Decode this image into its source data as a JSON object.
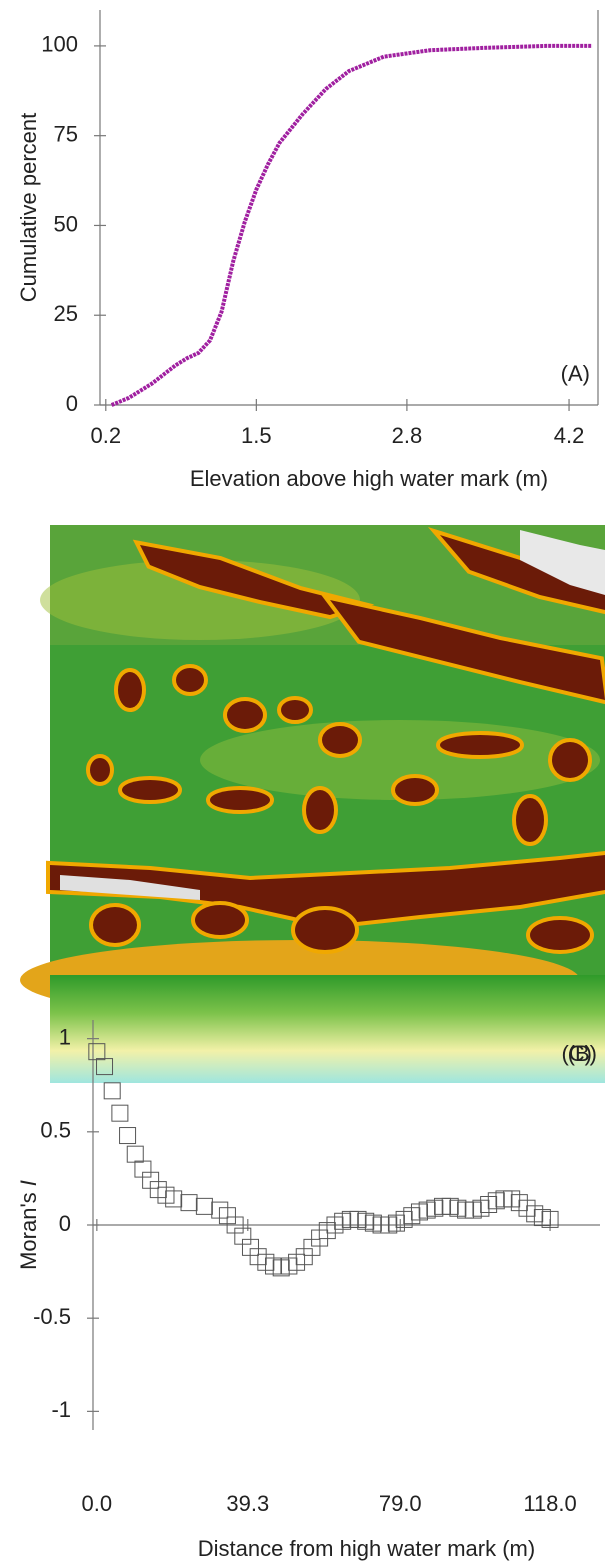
{
  "chart_data": [
    {
      "type": "line",
      "ylabel": "Cumulative percent",
      "xlabel": "Elevation above high water mark (m)",
      "panel_label": "(A)",
      "x": [
        0.25,
        0.4,
        0.6,
        0.8,
        0.9,
        1.0,
        1.1,
        1.2,
        1.3,
        1.4,
        1.5,
        1.6,
        1.7,
        1.9,
        2.1,
        2.3,
        2.6,
        3.0,
        3.5,
        4.0,
        4.4
      ],
      "values": [
        0,
        2,
        6,
        11,
        13,
        14.5,
        18,
        26,
        40,
        51,
        60,
        67,
        73,
        81,
        88,
        93,
        97,
        98.8,
        99.5,
        100,
        100
      ],
      "color": "#a020a0",
      "xlim": [
        0.15,
        4.45
      ],
      "xticks": [
        0.2,
        1.5,
        2.8,
        4.2
      ],
      "ylim": [
        0,
        110
      ],
      "yticks": [
        0,
        25,
        50,
        75,
        100
      ]
    },
    {
      "type": "image",
      "panel_label": "(B)"
    },
    {
      "type": "scatter",
      "ylabel": "Moran's",
      "ylabel_italic": "I",
      "xlabel": "Distance from high water mark (m)",
      "panel_label": "(C)",
      "x": [
        0,
        2,
        4,
        6,
        8,
        10,
        12,
        14,
        16,
        18,
        20,
        24,
        28,
        32,
        34,
        36,
        38,
        40,
        42,
        44,
        46,
        48,
        50,
        52,
        54,
        56,
        58,
        60,
        62,
        64,
        66,
        68,
        70,
        72,
        74,
        76,
        78,
        80,
        82,
        84,
        86,
        88,
        90,
        92,
        94,
        96,
        98,
        100,
        102,
        104,
        106,
        108,
        110,
        112,
        114,
        116,
        118
      ],
      "values": [
        0.93,
        0.85,
        0.72,
        0.6,
        0.48,
        0.38,
        0.3,
        0.24,
        0.19,
        0.16,
        0.14,
        0.12,
        0.1,
        0.08,
        0.05,
        0.0,
        -0.06,
        -0.12,
        -0.17,
        -0.2,
        -0.22,
        -0.23,
        -0.22,
        -0.2,
        -0.17,
        -0.12,
        -0.07,
        -0.03,
        0.0,
        0.02,
        0.03,
        0.03,
        0.02,
        0.01,
        0.0,
        0.0,
        0.01,
        0.03,
        0.05,
        0.07,
        0.08,
        0.09,
        0.1,
        0.1,
        0.09,
        0.08,
        0.08,
        0.09,
        0.11,
        0.13,
        0.14,
        0.14,
        0.12,
        0.09,
        0.06,
        0.04,
        0.03
      ],
      "color": "#555555",
      "xlim": [
        -1,
        131
      ],
      "xticks": [
        {
          "value": 0,
          "label": "0.0"
        },
        39.3,
        {
          "value": 79,
          "label": "79.0"
        },
        {
          "value": 118,
          "label": "118.0"
        }
      ],
      "ylim": [
        -1.1,
        1.1
      ],
      "yticks": [
        1,
        0.5,
        0,
        -0.5,
        -1
      ]
    }
  ]
}
